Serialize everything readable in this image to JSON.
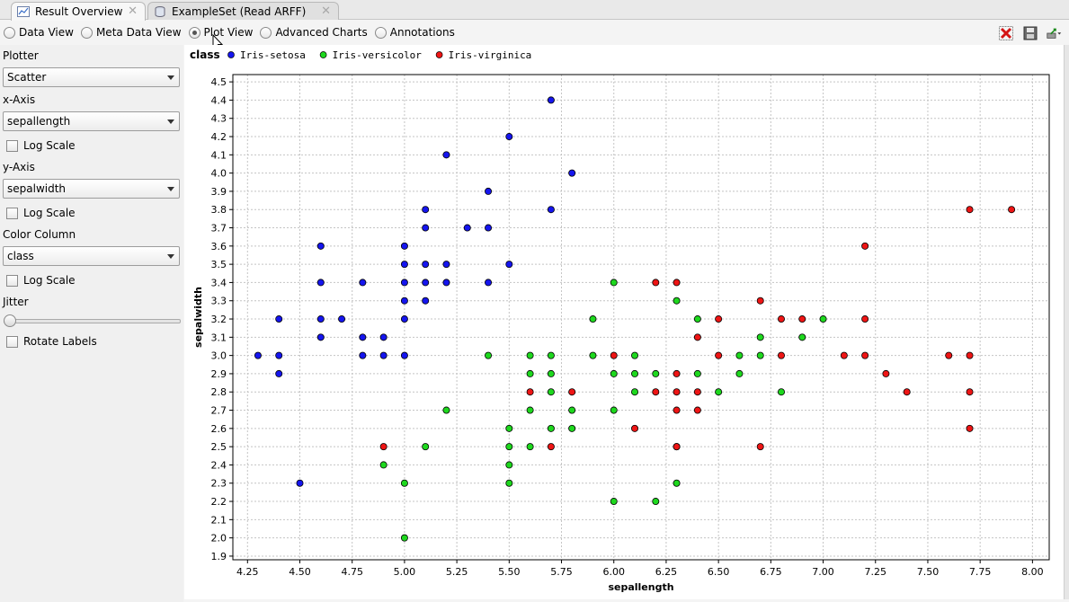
{
  "tabs": [
    {
      "label": "Result Overview",
      "active": true,
      "icon": "result-overview-icon"
    },
    {
      "label": "ExampleSet (Read ARFF)",
      "active": false,
      "icon": "database-icon"
    }
  ],
  "view_modes": [
    {
      "label": "Data View",
      "selected": false
    },
    {
      "label": "Meta Data View",
      "selected": false
    },
    {
      "label": "Plot View",
      "selected": true
    },
    {
      "label": "Advanced Charts",
      "selected": false
    },
    {
      "label": "Annotations",
      "selected": false
    }
  ],
  "toolbar_icons": [
    "close-red-icon",
    "save-icon",
    "export-icon"
  ],
  "sidebar": {
    "plotter_label": "Plotter",
    "plotter_value": "Scatter",
    "xaxis_label": "x-Axis",
    "xaxis_value": "sepallength",
    "xaxis_log": "Log Scale",
    "yaxis_label": "y-Axis",
    "yaxis_value": "sepalwidth",
    "yaxis_log": "Log Scale",
    "color_label": "Color Column",
    "color_value": "class",
    "color_log": "Log Scale",
    "jitter_label": "Jitter",
    "jitter_value": 0,
    "rotate_label": "Rotate Labels"
  },
  "chart_data": {
    "type": "scatter",
    "legend_title": "class",
    "legend_position": "top-left",
    "xlabel": "sepallength",
    "ylabel": "sepalwidth",
    "xlim": [
      4.18,
      8.08
    ],
    "ylim": [
      1.88,
      4.54
    ],
    "xticks": [
      "4.25",
      "4.50",
      "4.75",
      "5.00",
      "5.25",
      "5.50",
      "5.75",
      "6.00",
      "6.25",
      "6.50",
      "6.75",
      "7.00",
      "7.25",
      "7.50",
      "7.75",
      "8.00"
    ],
    "yticks": [
      "1.9",
      "2.0",
      "2.1",
      "2.2",
      "2.3",
      "2.4",
      "2.5",
      "2.6",
      "2.7",
      "2.8",
      "2.9",
      "3.0",
      "3.1",
      "3.2",
      "3.3",
      "3.4",
      "3.5",
      "3.6",
      "3.7",
      "3.8",
      "3.9",
      "4.0",
      "4.1",
      "4.2",
      "4.3",
      "4.4",
      "4.5"
    ],
    "grid": true,
    "series": [
      {
        "name": "Iris-setosa",
        "color": "#1515ee",
        "points": [
          [
            4.3,
            3.0
          ],
          [
            4.4,
            2.9
          ],
          [
            4.4,
            3.0
          ],
          [
            4.4,
            3.2
          ],
          [
            4.5,
            2.3
          ],
          [
            4.6,
            3.1
          ],
          [
            4.6,
            3.2
          ],
          [
            4.6,
            3.4
          ],
          [
            4.6,
            3.6
          ],
          [
            4.7,
            3.2
          ],
          [
            4.8,
            3.0
          ],
          [
            4.8,
            3.1
          ],
          [
            4.8,
            3.4
          ],
          [
            4.9,
            3.0
          ],
          [
            4.9,
            3.1
          ],
          [
            5.0,
            3.0
          ],
          [
            5.0,
            3.2
          ],
          [
            5.0,
            3.3
          ],
          [
            5.0,
            3.4
          ],
          [
            5.0,
            3.5
          ],
          [
            5.0,
            3.6
          ],
          [
            5.1,
            3.3
          ],
          [
            5.1,
            3.4
          ],
          [
            5.1,
            3.5
          ],
          [
            5.1,
            3.7
          ],
          [
            5.1,
            3.8
          ],
          [
            5.2,
            3.4
          ],
          [
            5.2,
            3.5
          ],
          [
            5.2,
            4.1
          ],
          [
            5.3,
            3.7
          ],
          [
            5.4,
            3.4
          ],
          [
            5.4,
            3.7
          ],
          [
            5.4,
            3.9
          ],
          [
            5.5,
            3.5
          ],
          [
            5.5,
            4.2
          ],
          [
            5.7,
            3.8
          ],
          [
            5.7,
            4.4
          ],
          [
            5.8,
            4.0
          ]
        ]
      },
      {
        "name": "Iris-versicolor",
        "color": "#1ed81e",
        "points": [
          [
            4.9,
            2.4
          ],
          [
            5.0,
            2.0
          ],
          [
            5.0,
            2.3
          ],
          [
            5.1,
            2.5
          ],
          [
            5.2,
            2.7
          ],
          [
            5.4,
            3.0
          ],
          [
            5.5,
            2.3
          ],
          [
            5.5,
            2.4
          ],
          [
            5.5,
            2.5
          ],
          [
            5.5,
            2.6
          ],
          [
            5.6,
            2.5
          ],
          [
            5.6,
            2.7
          ],
          [
            5.6,
            2.9
          ],
          [
            5.6,
            3.0
          ],
          [
            5.7,
            2.6
          ],
          [
            5.7,
            2.8
          ],
          [
            5.7,
            2.9
          ],
          [
            5.7,
            3.0
          ],
          [
            5.8,
            2.6
          ],
          [
            5.8,
            2.7
          ],
          [
            5.9,
            3.0
          ],
          [
            5.9,
            3.2
          ],
          [
            6.0,
            2.2
          ],
          [
            6.0,
            2.7
          ],
          [
            6.0,
            2.9
          ],
          [
            6.0,
            3.4
          ],
          [
            6.1,
            2.8
          ],
          [
            6.1,
            2.9
          ],
          [
            6.1,
            3.0
          ],
          [
            6.2,
            2.2
          ],
          [
            6.2,
            2.9
          ],
          [
            6.3,
            2.3
          ],
          [
            6.3,
            2.5
          ],
          [
            6.3,
            3.3
          ],
          [
            6.4,
            2.9
          ],
          [
            6.4,
            3.2
          ],
          [
            6.5,
            2.8
          ],
          [
            6.6,
            2.9
          ],
          [
            6.6,
            3.0
          ],
          [
            6.7,
            3.0
          ],
          [
            6.7,
            3.1
          ],
          [
            6.8,
            2.8
          ],
          [
            6.9,
            3.1
          ],
          [
            7.0,
            3.2
          ]
        ]
      },
      {
        "name": "Iris-virginica",
        "color": "#ee1515",
        "points": [
          [
            4.9,
            2.5
          ],
          [
            5.6,
            2.8
          ],
          [
            5.7,
            2.5
          ],
          [
            5.8,
            2.8
          ],
          [
            6.0,
            3.0
          ],
          [
            6.1,
            2.6
          ],
          [
            6.2,
            2.8
          ],
          [
            6.2,
            3.4
          ],
          [
            6.3,
            2.5
          ],
          [
            6.3,
            2.7
          ],
          [
            6.3,
            2.8
          ],
          [
            6.3,
            2.9
          ],
          [
            6.3,
            3.4
          ],
          [
            6.4,
            2.7
          ],
          [
            6.4,
            2.8
          ],
          [
            6.4,
            3.1
          ],
          [
            6.5,
            3.0
          ],
          [
            6.5,
            3.2
          ],
          [
            6.7,
            2.5
          ],
          [
            6.7,
            3.3
          ],
          [
            6.8,
            3.0
          ],
          [
            6.8,
            3.2
          ],
          [
            6.9,
            3.2
          ],
          [
            7.1,
            3.0
          ],
          [
            7.2,
            3.0
          ],
          [
            7.2,
            3.2
          ],
          [
            7.2,
            3.6
          ],
          [
            7.3,
            2.9
          ],
          [
            7.4,
            2.8
          ],
          [
            7.6,
            3.0
          ],
          [
            7.7,
            2.6
          ],
          [
            7.7,
            2.8
          ],
          [
            7.7,
            3.0
          ],
          [
            7.7,
            3.8
          ],
          [
            7.9,
            3.8
          ]
        ]
      }
    ]
  }
}
